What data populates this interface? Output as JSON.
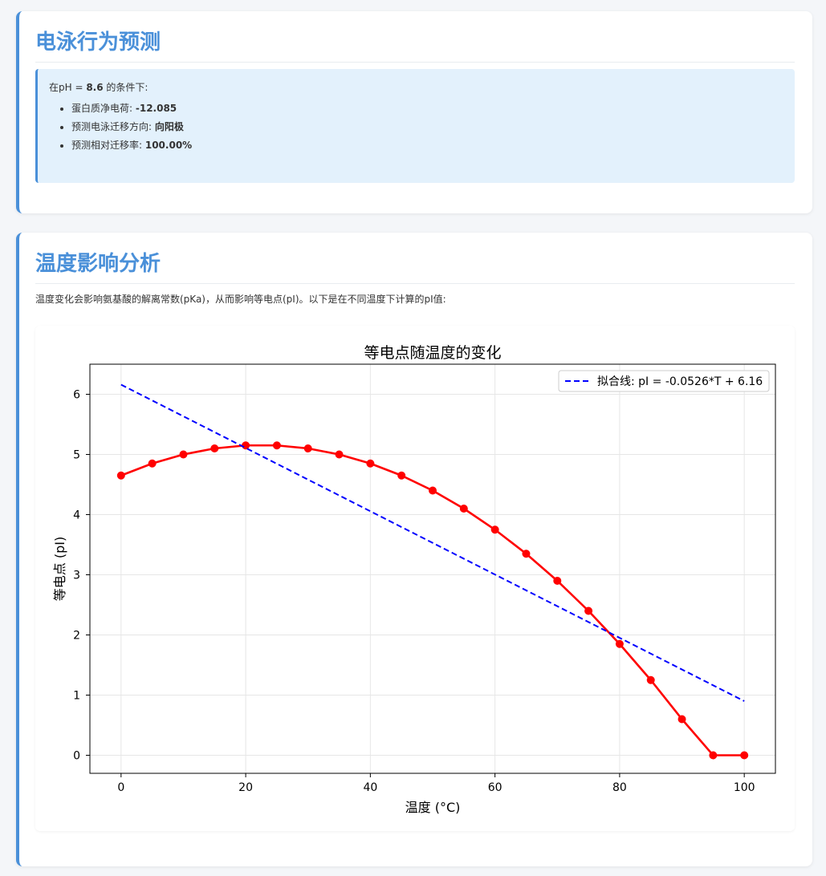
{
  "electrophoresis": {
    "title": "电泳行为预测",
    "condition_prefix": "在pH = ",
    "ph_value": "8.6",
    "condition_suffix": " 的条件下:",
    "items": [
      {
        "label": "蛋白质净电荷: ",
        "value": "-12.085"
      },
      {
        "label": "预测电泳迁移方向: ",
        "value": "向阳极"
      },
      {
        "label": "预测相对迁移率: ",
        "value": "100.00%"
      }
    ]
  },
  "temperature": {
    "title": "温度影响分析",
    "description": "温度变化会影响氨基酸的解离常数(pKa)，从而影响等电点(pI)。以下是在不同温度下计算的pI值:"
  },
  "chart_data": {
    "type": "line",
    "title": "等电点随温度的变化",
    "xlabel": "温度 (°C)",
    "ylabel": "等电点 (pI)",
    "xlim": [
      -5,
      105
    ],
    "ylim": [
      -0.3,
      6.5
    ],
    "xticks": [
      0,
      20,
      40,
      60,
      80,
      100
    ],
    "yticks": [
      0,
      1,
      2,
      3,
      4,
      5,
      6
    ],
    "grid": true,
    "legend_position": "top-right",
    "series": [
      {
        "name": "",
        "style": "solid-with-markers",
        "color": "#ff0000",
        "x": [
          0,
          5,
          10,
          15,
          20,
          25,
          30,
          35,
          40,
          45,
          50,
          55,
          60,
          65,
          70,
          75,
          80,
          85,
          90,
          95,
          100
        ],
        "y": [
          4.65,
          4.85,
          5.0,
          5.1,
          5.15,
          5.15,
          5.1,
          5.0,
          4.85,
          4.65,
          4.4,
          4.1,
          3.75,
          3.35,
          2.9,
          2.4,
          1.85,
          1.25,
          0.6,
          0.0,
          0.0
        ]
      },
      {
        "name": "拟合线: pI = -0.0526*T + 6.16",
        "style": "dashed",
        "color": "#0000ff",
        "x": [
          0,
          100
        ],
        "y": [
          6.16,
          0.9
        ]
      }
    ]
  }
}
